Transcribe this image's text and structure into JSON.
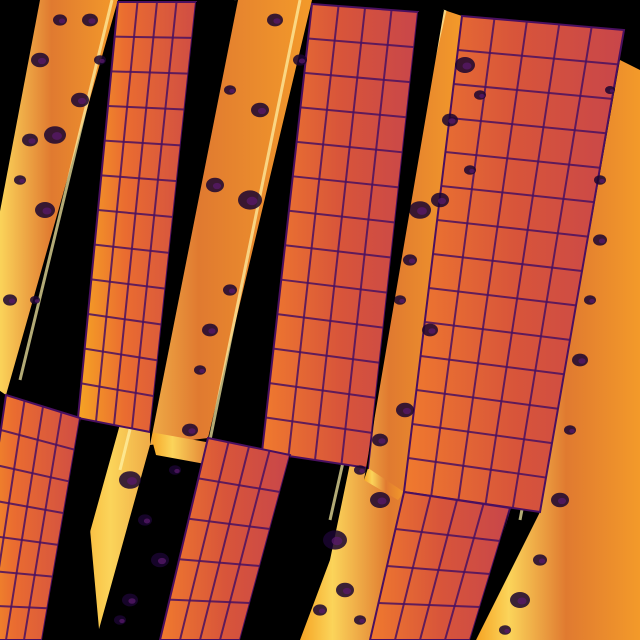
{
  "image": {
    "kind": "aerial thermal image of solar panel rows",
    "palette": {
      "background": "#000000",
      "cold": "#1a0530",
      "cool": "#5b1a6e",
      "panel_dark": "#b53a4a",
      "panel": "#d8553a",
      "panel_light": "#f07a2e",
      "warm": "#f6a424",
      "hot": "#fbd45a",
      "hottest": "#fff3a8",
      "grid_line": "#4a1060"
    },
    "rows": [
      {
        "id": "row-1"
      },
      {
        "id": "row-2"
      },
      {
        "id": "row-3"
      },
      {
        "id": "row-4"
      }
    ]
  }
}
